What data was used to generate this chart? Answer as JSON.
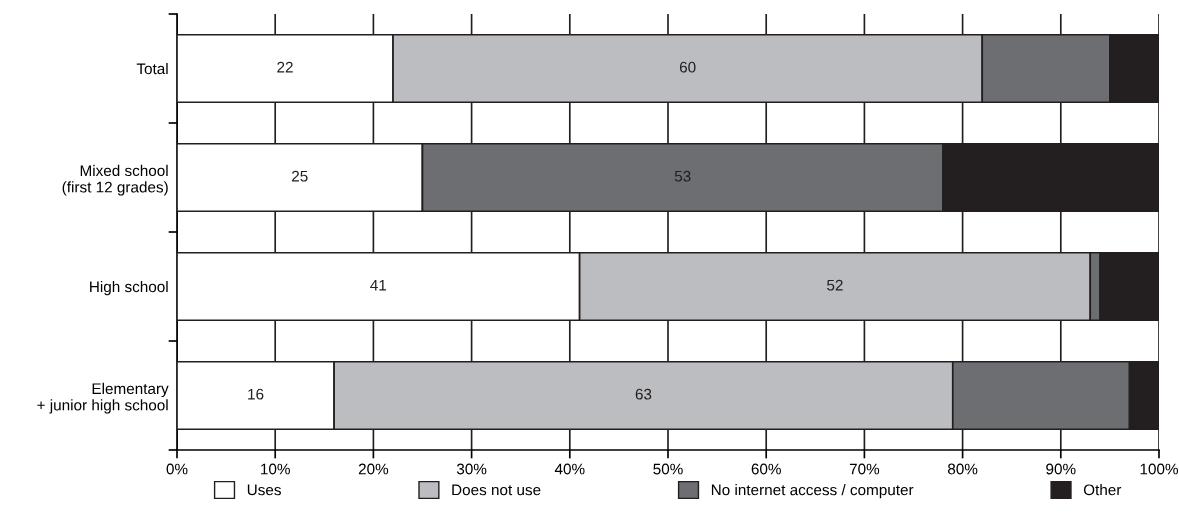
{
  "chart_data": {
    "type": "bar",
    "orientation": "horizontal",
    "stacked": true,
    "categories": [
      "Total",
      "Mixed school\n(first 12 grades)",
      "High school",
      "Elementary\n+ junior high school"
    ],
    "series": [
      {
        "name": "Uses",
        "color": "#ffffff",
        "values": [
          22,
          25,
          41,
          16
        ],
        "value_labels": [
          "22",
          "25",
          "41",
          "16"
        ]
      },
      {
        "name": "Does not use",
        "color": "#bcbdc0",
        "values": [
          60,
          null,
          52,
          63
        ],
        "value_labels": [
          "60",
          null,
          "52",
          "63"
        ]
      },
      {
        "name": "No internet access / computer",
        "color": "#6d6e71",
        "values": [
          13,
          53,
          1,
          18
        ],
        "value_labels": [
          null,
          "53",
          null,
          null
        ]
      },
      {
        "name": "Other",
        "color": "#231f20",
        "values": [
          5,
          22,
          6,
          3
        ]
      }
    ],
    "xlim": [
      0,
      100
    ],
    "xticks": [
      {
        "value": 0,
        "label": "0%"
      },
      {
        "value": 10,
        "label": "10%"
      },
      {
        "value": 20,
        "label": "20%"
      },
      {
        "value": 30,
        "label": "30%"
      },
      {
        "value": 40,
        "label": "40%"
      },
      {
        "value": 50,
        "label": "50%"
      },
      {
        "value": 60,
        "label": "60%"
      },
      {
        "value": 70,
        "label": "70%"
      },
      {
        "value": 80,
        "label": "80%"
      },
      {
        "value": 90,
        "label": "90%"
      },
      {
        "value": 100,
        "label": "100%"
      }
    ],
    "grid": "x",
    "legend": "bottom"
  }
}
